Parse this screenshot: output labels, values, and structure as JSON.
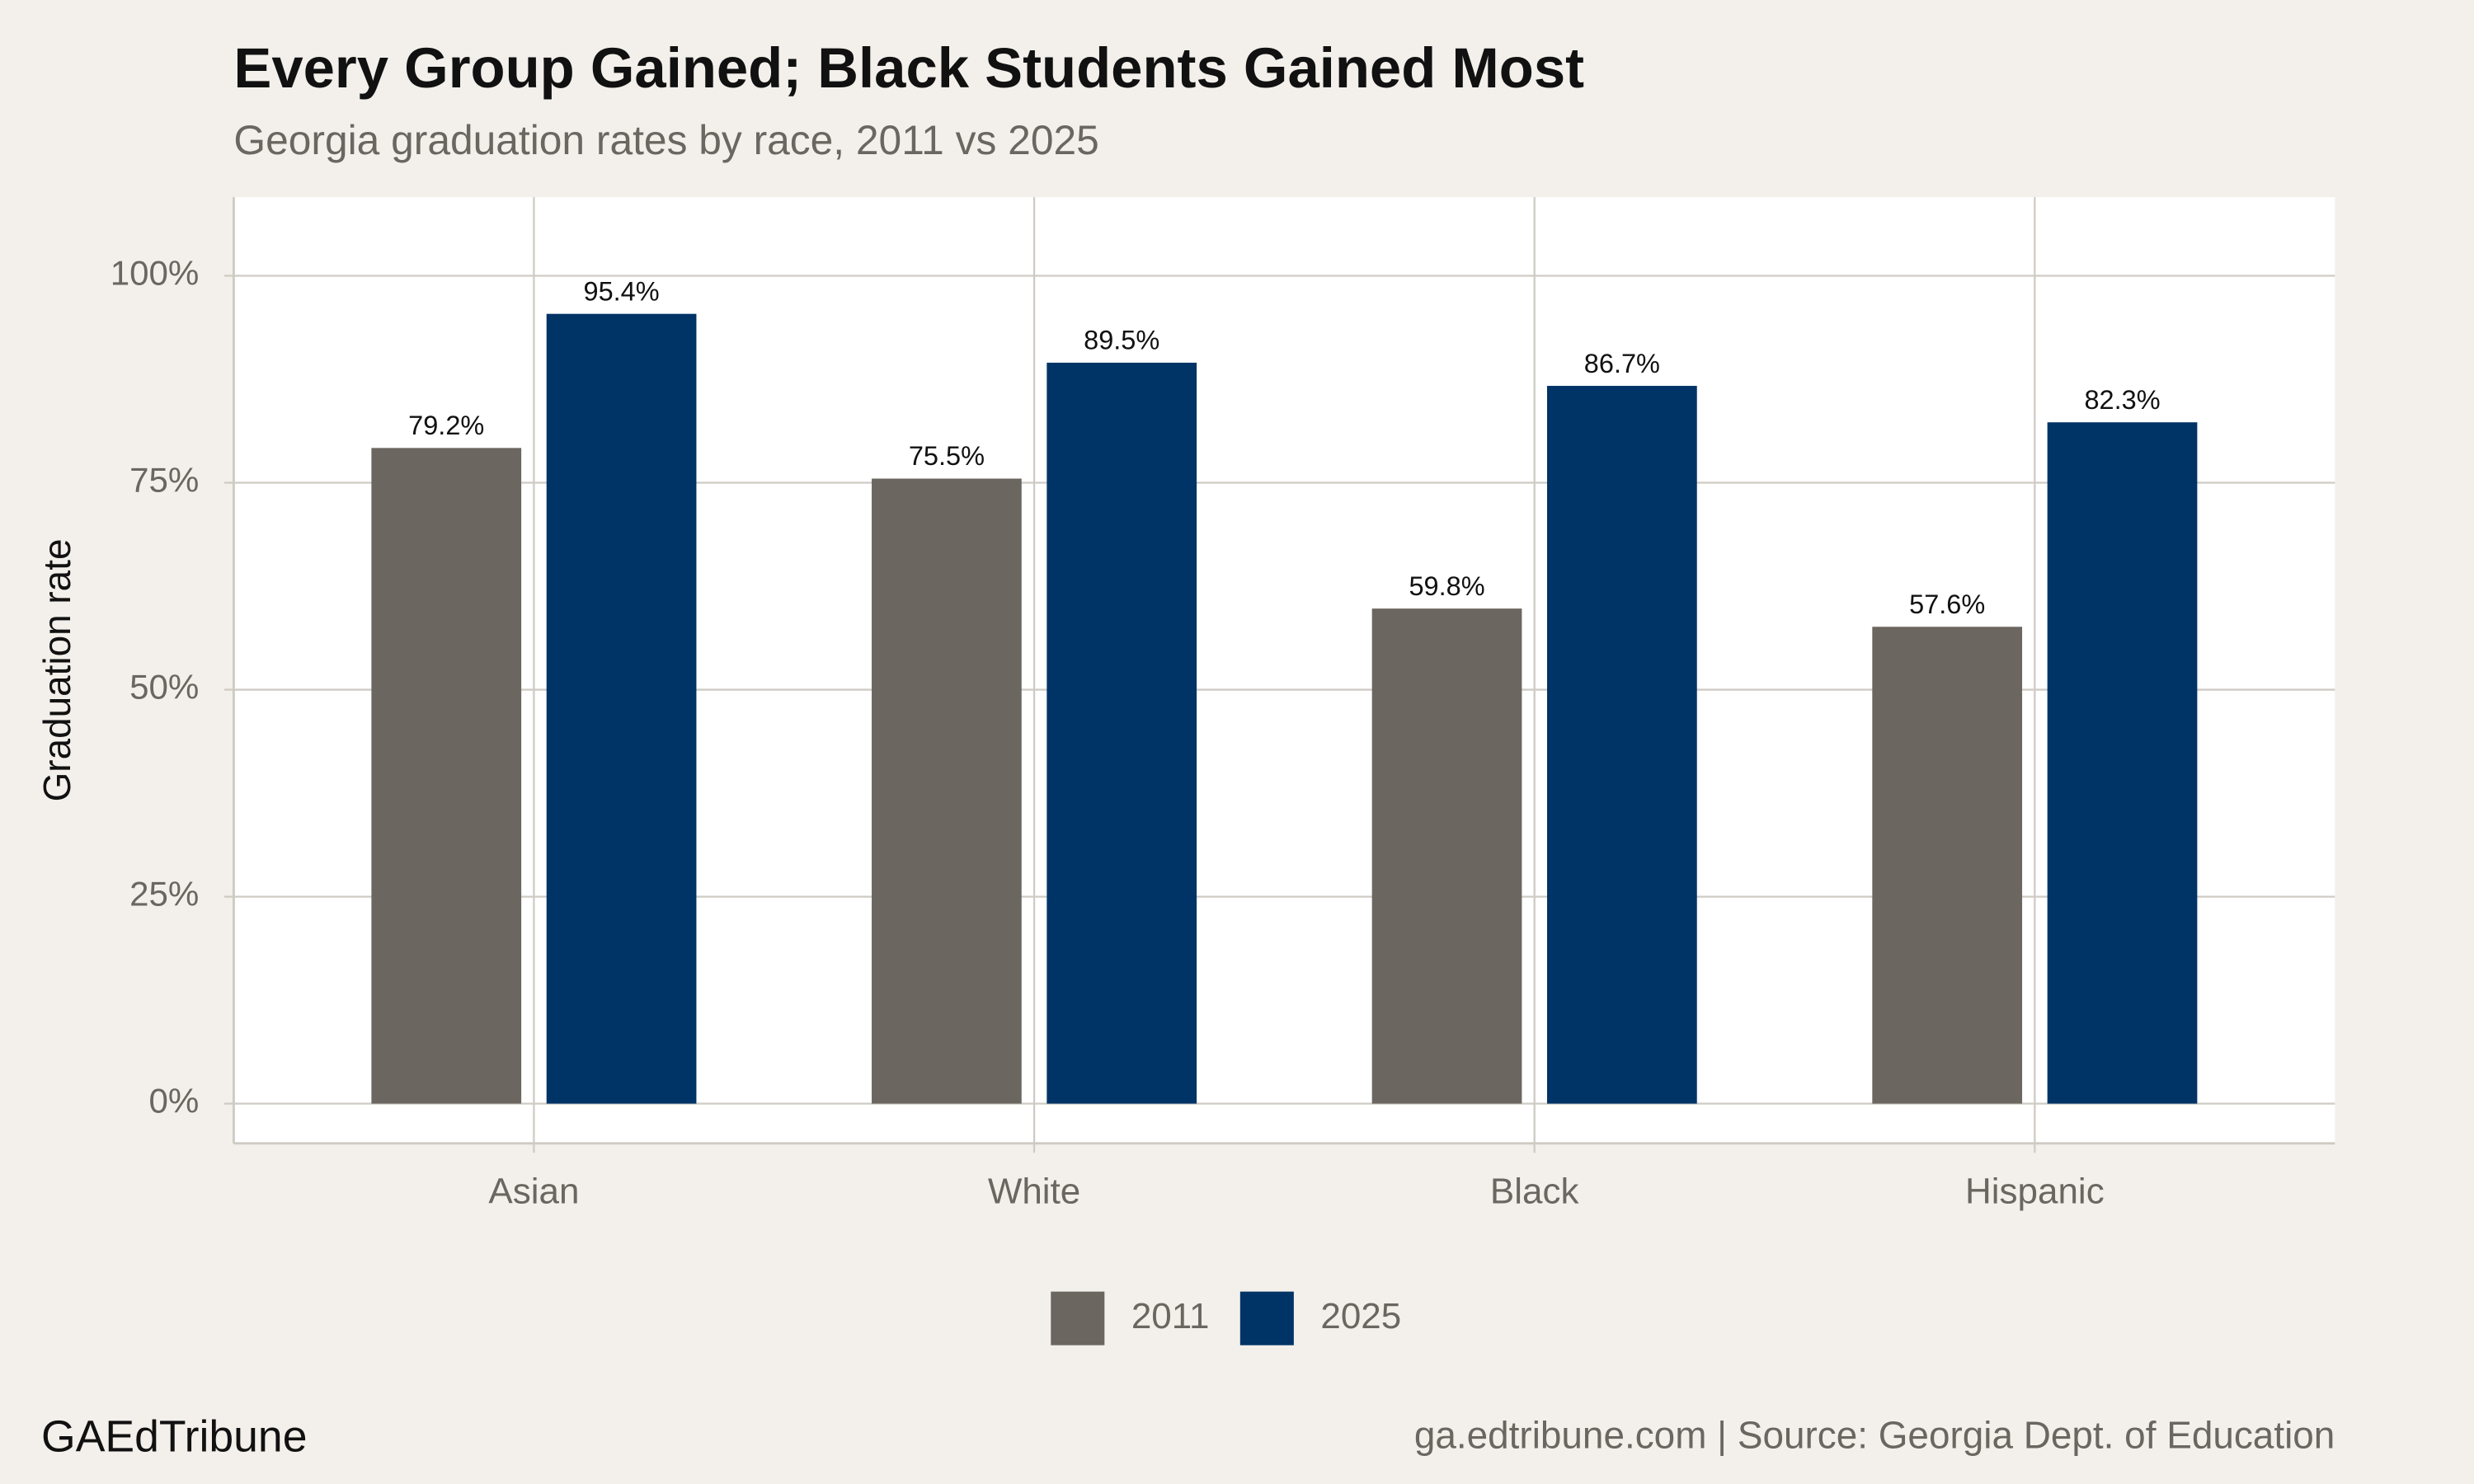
{
  "chart_data": {
    "type": "bar",
    "title": "Every Group Gained; Black Students Gained Most",
    "subtitle": "Georgia graduation rates by race, 2011 vs 2025",
    "y_label": "Graduation rate",
    "categories": [
      "Asian",
      "White",
      "Black",
      "Hispanic"
    ],
    "series": [
      {
        "name": "2011",
        "color": "#6b6660",
        "values": [
          79.2,
          75.5,
          59.8,
          57.6
        ],
        "value_labels": [
          "79.2%",
          "75.5%",
          "59.8%",
          "57.6%"
        ]
      },
      {
        "name": "2025",
        "color": "#003366",
        "values": [
          95.4,
          89.5,
          86.7,
          82.3
        ],
        "value_labels": [
          "95.4%",
          "89.5%",
          "86.7%",
          "82.3%"
        ]
      }
    ],
    "ylim": [
      -4.8,
      109.5
    ],
    "yticks": [
      {
        "value": 0,
        "label": "0%"
      },
      {
        "value": 25,
        "label": "25%"
      },
      {
        "value": 50,
        "label": "50%"
      },
      {
        "value": 75,
        "label": "75%"
      },
      {
        "value": 100,
        "label": "100%"
      }
    ],
    "grid": true,
    "legend": "bottom",
    "brand": "GAEdTribune",
    "source": "ga.edtribune.com | Source: Georgia Dept. of Education"
  }
}
